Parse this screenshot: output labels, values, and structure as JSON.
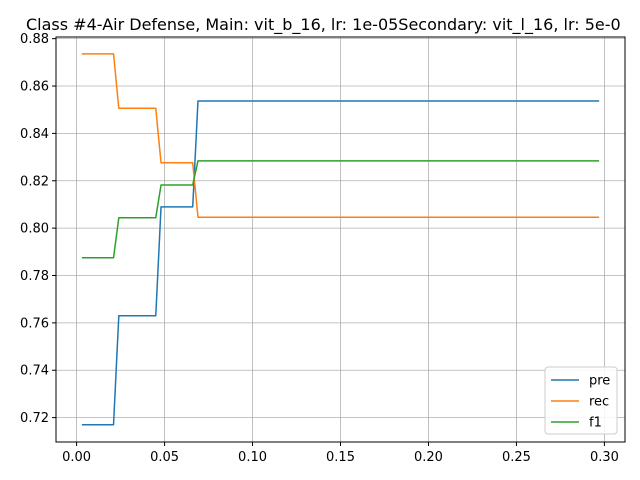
{
  "chart_data": {
    "type": "line",
    "title": "Class #4-Air Defense, Main: vit_b_16, lr: 1e-05Secondary: vit_l_16, lr: 5e-0",
    "xlabel": "",
    "ylabel": "",
    "xlim": [
      -0.0117,
      0.3117
    ],
    "ylim": [
      0.7097,
      0.8807
    ],
    "x_ticks": [
      0.0,
      0.05,
      0.1,
      0.15,
      0.2,
      0.25,
      0.3
    ],
    "x_tick_labels": [
      "0.00",
      "0.05",
      "0.10",
      "0.15",
      "0.20",
      "0.25",
      "0.30"
    ],
    "y_ticks": [
      0.72,
      0.74,
      0.76,
      0.78,
      0.8,
      0.82,
      0.84,
      0.86,
      0.88
    ],
    "y_tick_labels": [
      "0.72",
      "0.74",
      "0.76",
      "0.78",
      "0.80",
      "0.82",
      "0.84",
      "0.86",
      "0.88"
    ],
    "grid": true,
    "legend_position": "bottom-right",
    "series": [
      {
        "name": "pre",
        "color": "#1f77b4",
        "x": [
          0.003,
          0.021,
          0.024,
          0.045,
          0.048,
          0.066,
          0.069,
          0.297
        ],
        "y": [
          0.717,
          0.717,
          0.763,
          0.763,
          0.809,
          0.809,
          0.8537,
          0.8537
        ]
      },
      {
        "name": "rec",
        "color": "#ff7f0e",
        "x": [
          0.003,
          0.021,
          0.024,
          0.045,
          0.048,
          0.066,
          0.069,
          0.297
        ],
        "y": [
          0.8736,
          0.8736,
          0.8506,
          0.8506,
          0.8276,
          0.8276,
          0.8046,
          0.8046
        ]
      },
      {
        "name": "f1",
        "color": "#2ca02c",
        "x": [
          0.003,
          0.021,
          0.024,
          0.045,
          0.048,
          0.066,
          0.069,
          0.297
        ],
        "y": [
          0.7875,
          0.7875,
          0.8044,
          0.8044,
          0.8182,
          0.8182,
          0.8284,
          0.8284
        ]
      }
    ]
  }
}
